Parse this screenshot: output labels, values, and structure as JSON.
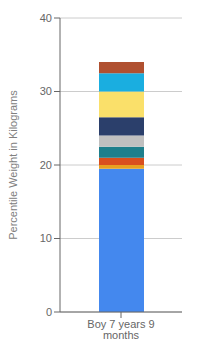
{
  "chart_data": {
    "type": "bar",
    "stacked": true,
    "grid": true,
    "categories": [
      "Boy 7 years 9 months"
    ],
    "ylabel": "Percentile Weight in Kilograms",
    "ylim": [
      0,
      40
    ],
    "yticks": [
      0,
      10,
      20,
      30,
      40
    ],
    "series": [
      {
        "color": "#4488EE",
        "values": [
          19.5
        ]
      },
      {
        "color": "#E8A020",
        "values": [
          0.5
        ]
      },
      {
        "color": "#D94F1E",
        "values": [
          1.0
        ]
      },
      {
        "color": "#1E7F8C",
        "values": [
          1.5
        ]
      },
      {
        "color": "#C0C0C0",
        "values": [
          1.5
        ]
      },
      {
        "color": "#2B3F6B",
        "values": [
          2.5
        ]
      },
      {
        "color": "#FAE06A",
        "values": [
          3.5
        ]
      },
      {
        "color": "#1AAEE0",
        "values": [
          2.5
        ]
      },
      {
        "color": "#B05030",
        "values": [
          1.5
        ]
      }
    ]
  }
}
